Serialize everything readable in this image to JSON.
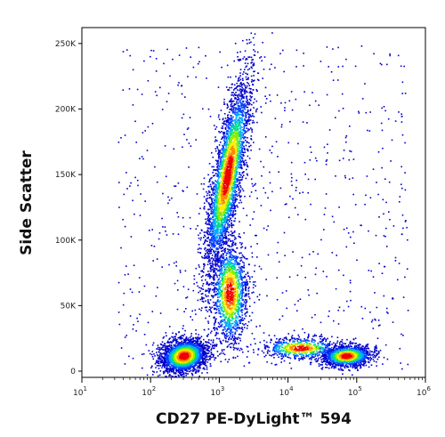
{
  "chart_data": {
    "type": "scatter",
    "subtype": "flow-cytometry density dot plot",
    "xlabel": "CD27 PE-DyLight™ 594",
    "ylabel": "Side Scatter",
    "x_scale": "log",
    "xlim": [
      10,
      1000000
    ],
    "ylim": [
      0,
      262144
    ],
    "x_ticks": [
      {
        "value": 10,
        "base": "10",
        "exp": "1"
      },
      {
        "value": 100,
        "base": "10",
        "exp": "2"
      },
      {
        "value": 1000,
        "base": "10",
        "exp": "3"
      },
      {
        "value": 10000,
        "base": "10",
        "exp": "4"
      },
      {
        "value": 100000,
        "base": "10",
        "exp": "5"
      },
      {
        "value": 1000000,
        "base": "10",
        "exp": "6"
      }
    ],
    "y_ticks": [
      {
        "value": 0,
        "label": "0"
      },
      {
        "value": 50000,
        "label": "50K"
      },
      {
        "value": 100000,
        "label": "100K"
      },
      {
        "value": 150000,
        "label": "150K"
      },
      {
        "value": 200000,
        "label": "200K"
      },
      {
        "value": 250000,
        "label": "250K"
      }
    ],
    "populations": [
      {
        "center_x": 300,
        "center_y": 12000,
        "count": 2600
      },
      {
        "center_x": 1300,
        "center_y": 150000,
        "count": 3400
      },
      {
        "center_x": 1400,
        "center_y": 60000,
        "count": 1500
      },
      {
        "center_x": 70000,
        "center_y": 12000,
        "count": 1400
      },
      {
        "center_x": 15000,
        "center_y": 18000,
        "count": 700
      }
    ],
    "color_scale": [
      "#0000cc",
      "#0040ff",
      "#00aaff",
      "#00dd88",
      "#88ee00",
      "#ffee00",
      "#ff8800",
      "#ee0000"
    ],
    "grid": false,
    "legend": "none"
  }
}
